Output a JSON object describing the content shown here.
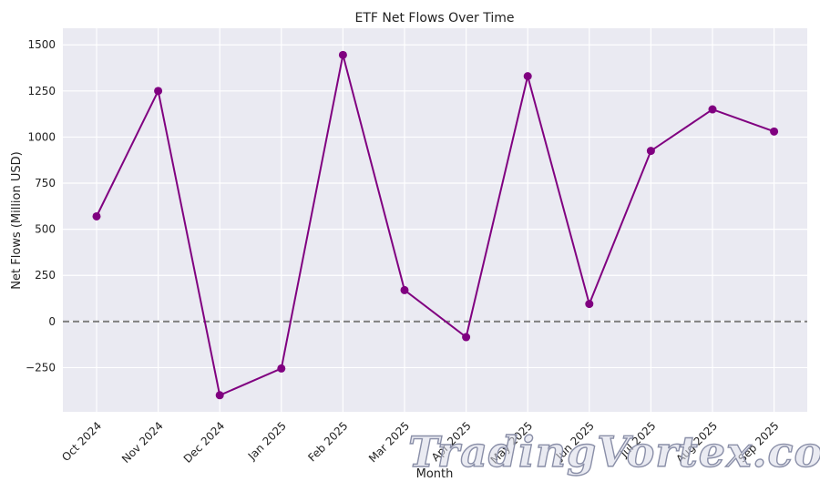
{
  "chart_data": {
    "type": "line",
    "title": "ETF Net Flows Over Time",
    "xlabel": "Month",
    "ylabel": "Net Flows (Million USD)",
    "categories": [
      "Oct 2024",
      "Nov 2024",
      "Dec 2024",
      "Jan 2025",
      "Feb 2025",
      "Mar 2025",
      "Apr 2025",
      "May 2025",
      "Jun 2025",
      "Jul 2025",
      "Aug 2025",
      "Sep 2025"
    ],
    "series": [
      {
        "values": [
          570,
          1250,
          -400,
          -255,
          1445,
          170,
          -85,
          1330,
          95,
          925,
          1150,
          1030
        ]
      }
    ],
    "yticks": [
      -250,
      0,
      250,
      500,
      750,
      1000,
      1250,
      1500
    ],
    "ytick_labels": [
      "−250",
      "0",
      "250",
      "500",
      "750",
      "1000",
      "1250",
      "1500"
    ],
    "ylim": [
      -490,
      1590
    ],
    "reference_line": {
      "y": 0,
      "style": "dashed",
      "color": "#808080"
    },
    "grid": true,
    "colors": {
      "series": "#800080",
      "plot_background": "#eaeaf2",
      "grid": "#ffffff"
    }
  },
  "watermark": {
    "text": "TradingVortex.com"
  }
}
